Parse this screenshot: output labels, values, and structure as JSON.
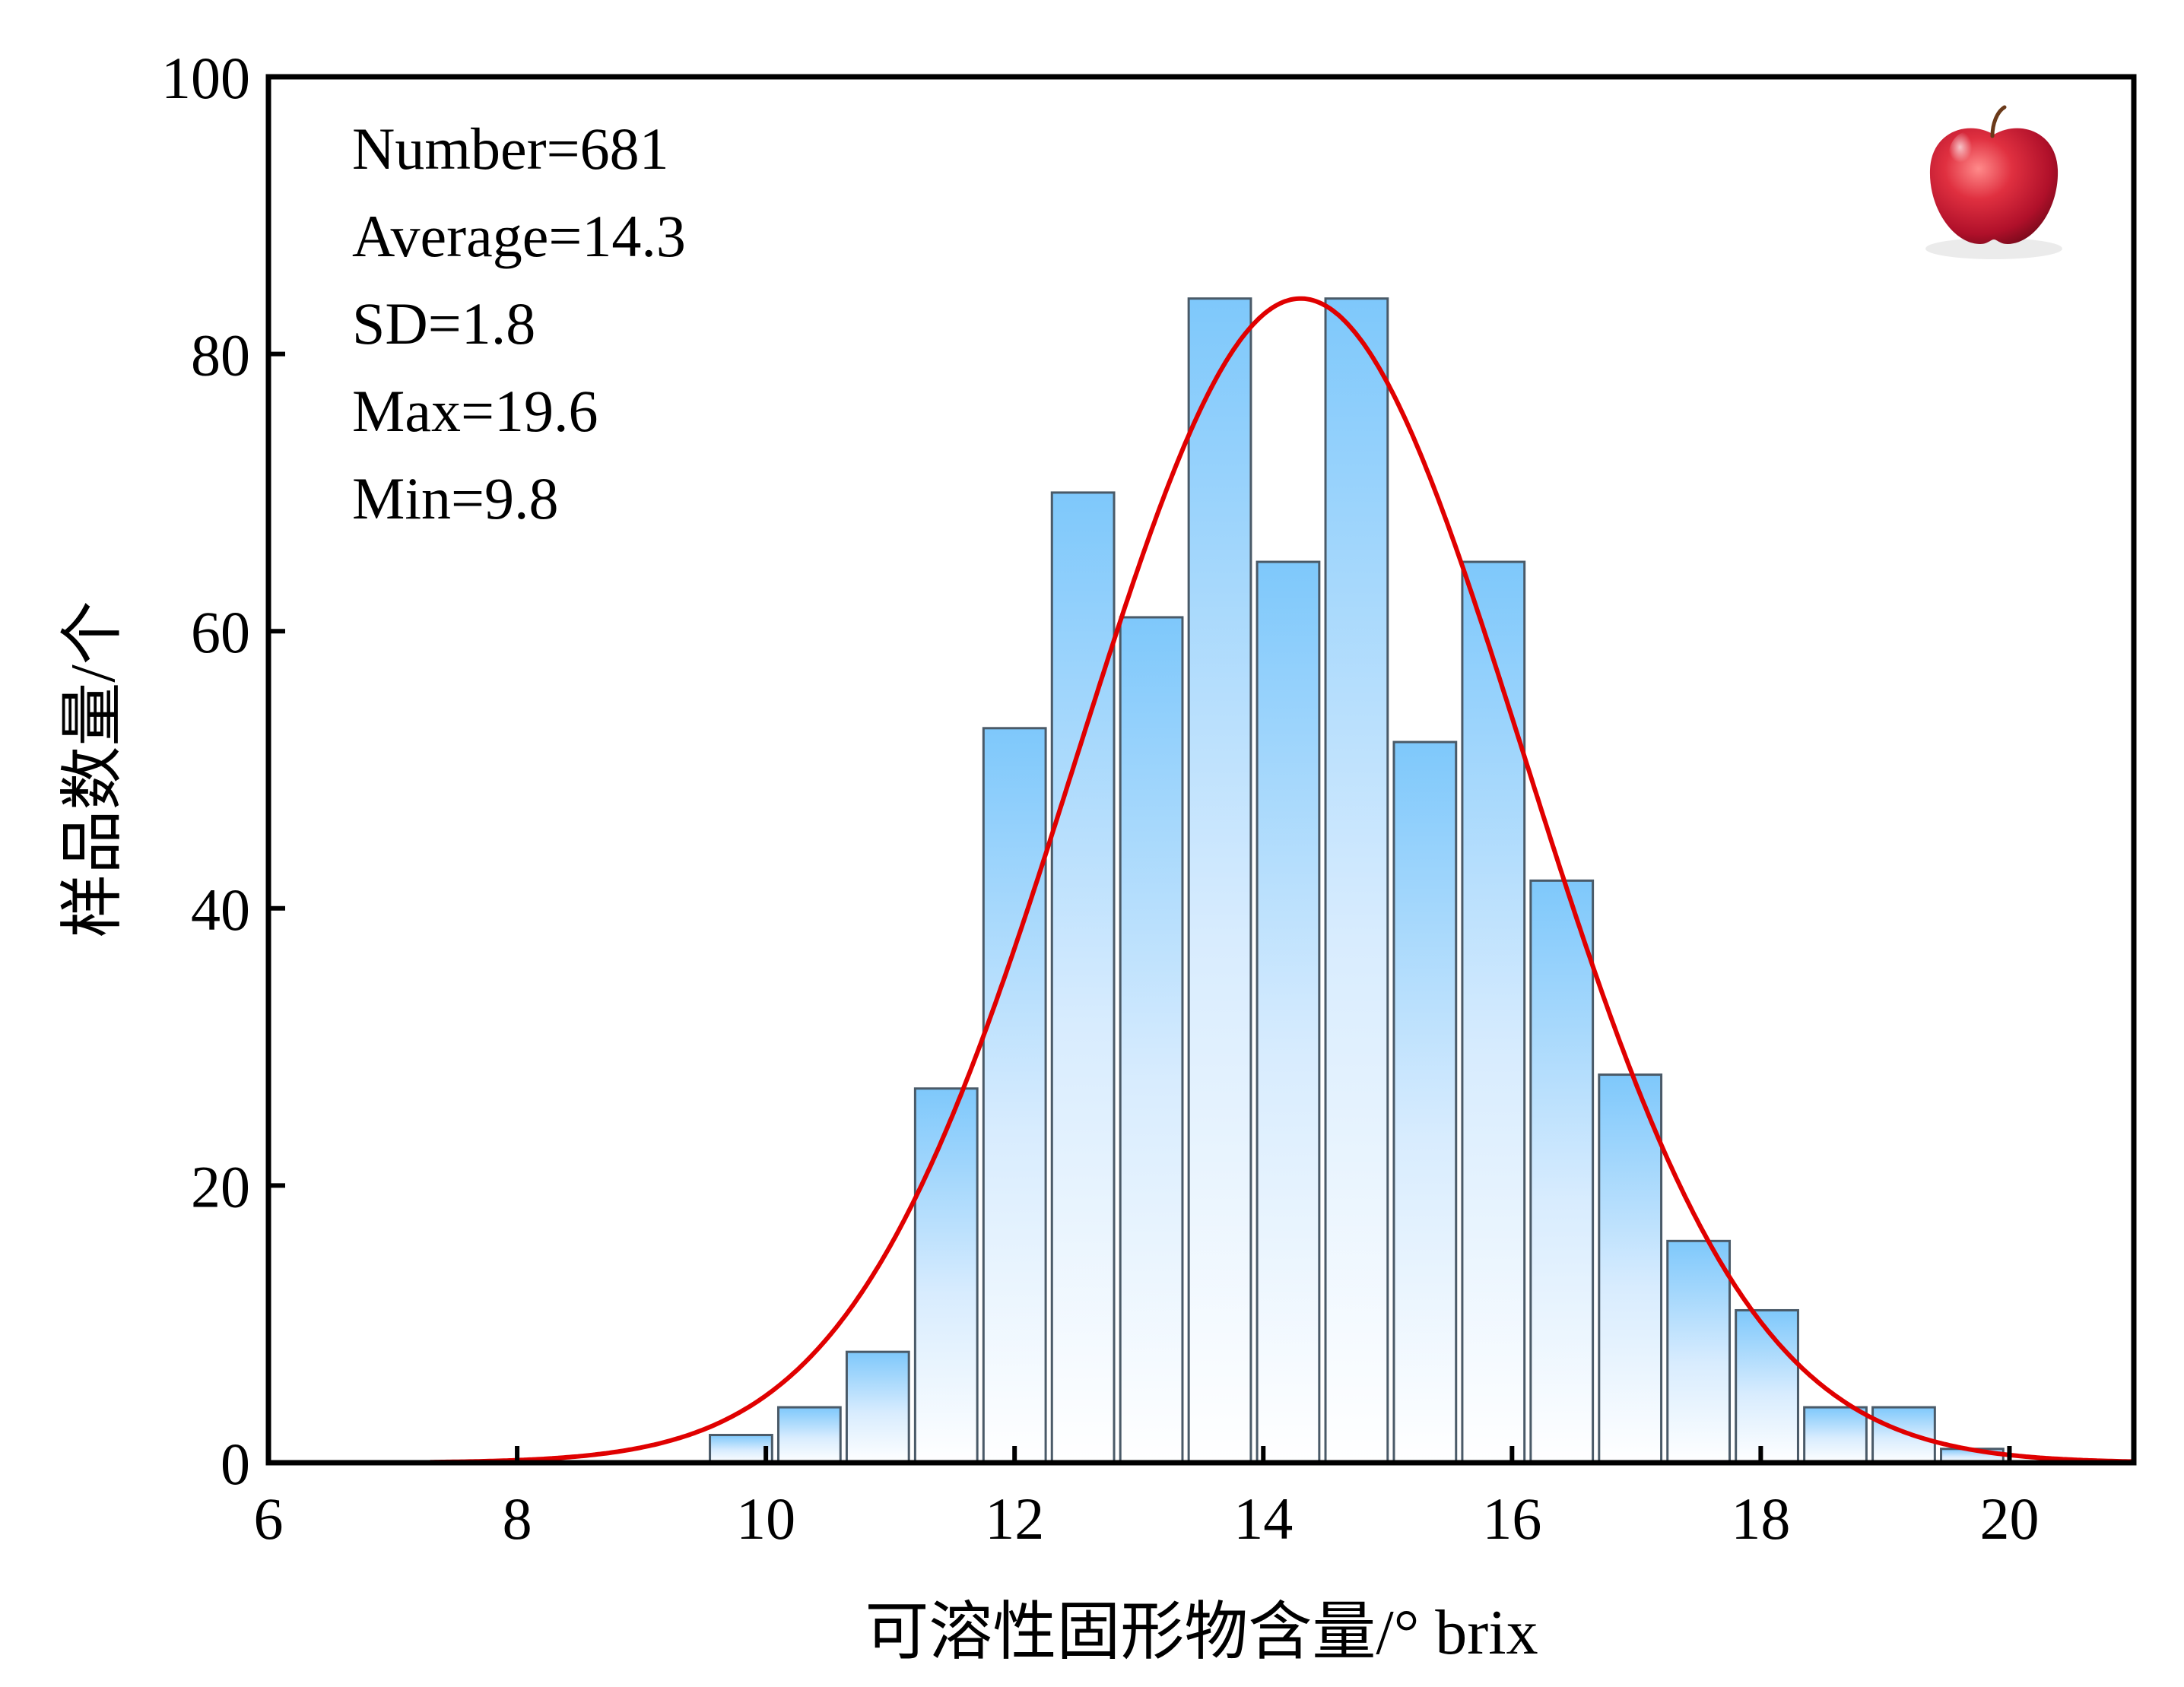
{
  "chart_data": {
    "type": "bar",
    "title": "",
    "xlabel": "可溶性固形物含量/° brix",
    "ylabel": "样品数量/个",
    "xlim": [
      6,
      21
    ],
    "ylim": [
      0,
      100
    ],
    "xticks": [
      "6",
      "8",
      "10",
      "12",
      "14",
      "16",
      "18",
      "20"
    ],
    "yticks": [
      "0",
      "20",
      "40",
      "60",
      "80",
      "100"
    ],
    "bin_width": 0.55,
    "bins": [
      {
        "x": 9.8,
        "value": 2
      },
      {
        "x": 10.35,
        "value": 4
      },
      {
        "x": 10.9,
        "value": 8
      },
      {
        "x": 11.45,
        "value": 27
      },
      {
        "x": 12.0,
        "value": 53
      },
      {
        "x": 12.55,
        "value": 70
      },
      {
        "x": 13.1,
        "value": 61
      },
      {
        "x": 13.65,
        "value": 84
      },
      {
        "x": 14.2,
        "value": 65
      },
      {
        "x": 14.75,
        "value": 84
      },
      {
        "x": 15.3,
        "value": 52
      },
      {
        "x": 15.85,
        "value": 65
      },
      {
        "x": 16.4,
        "value": 42
      },
      {
        "x": 16.95,
        "value": 28
      },
      {
        "x": 17.5,
        "value": 16
      },
      {
        "x": 18.05,
        "value": 11
      },
      {
        "x": 18.6,
        "value": 4
      },
      {
        "x": 19.15,
        "value": 4
      },
      {
        "x": 19.7,
        "value": 1
      }
    ],
    "fit": {
      "type": "normal",
      "mean": 14.3,
      "sd": 1.8,
      "peak": 84,
      "color": "#e00000"
    },
    "stats": [
      "Number=681",
      "Average=14.3",
      "SD=1.8",
      "Max=19.6",
      "Min=9.8"
    ],
    "bar_gradient": {
      "top": "#7ec8fb",
      "bottom": "#ffffff"
    },
    "bar_stroke": "#4a5a68",
    "grid": false,
    "legend": "none",
    "icon": "apple-icon"
  }
}
